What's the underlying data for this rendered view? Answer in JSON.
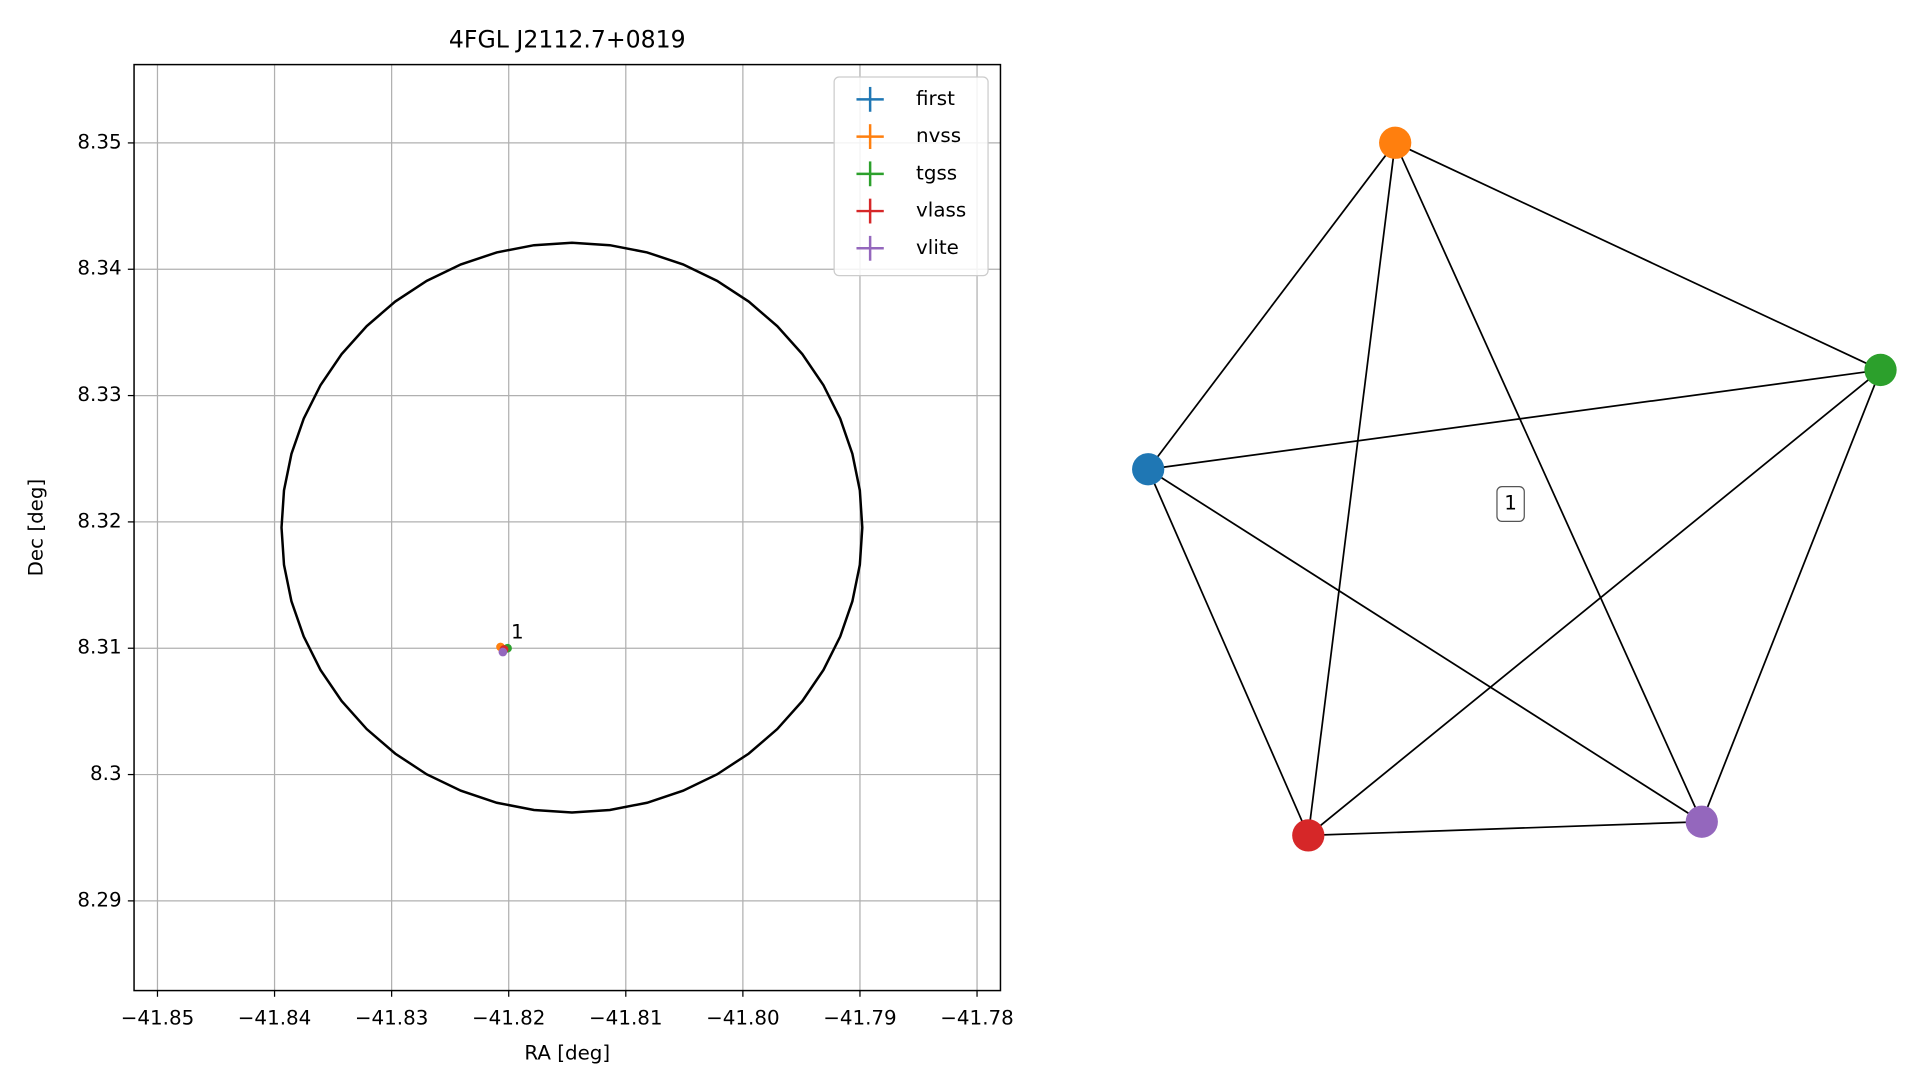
{
  "chart_data": [
    {
      "type": "scatter",
      "title": "4FGL J2112.7+0819",
      "xlabel": "RA [deg]",
      "ylabel": "Dec [deg]",
      "xlim": [
        -41.852,
        -41.778
      ],
      "ylim": [
        8.2829,
        8.3562
      ],
      "xticks": [
        {
          "value": -41.85,
          "label": "−41.85"
        },
        {
          "value": -41.84,
          "label": "−41.84"
        },
        {
          "value": -41.83,
          "label": "−41.83"
        },
        {
          "value": -41.82,
          "label": "−41.82"
        },
        {
          "value": -41.81,
          "label": "−41.81"
        },
        {
          "value": -41.8,
          "label": "−41.80"
        },
        {
          "value": -41.79,
          "label": "−41.79"
        },
        {
          "value": -41.78,
          "label": "−41.78"
        }
      ],
      "yticks": [
        8.29,
        8.3,
        8.31,
        8.32,
        8.33,
        8.34,
        8.35
      ],
      "grid": true,
      "legend": "upper right",
      "series": [
        {
          "name": "first",
          "color": "#1f77b4",
          "x": [
            -41.8204
          ],
          "values": [
            8.3099
          ]
        },
        {
          "name": "nvss",
          "color": "#ff7f0e",
          "x": [
            -41.8207
          ],
          "values": [
            8.3101
          ]
        },
        {
          "name": "tgss",
          "color": "#2ca02c",
          "x": [
            -41.8201
          ],
          "values": [
            8.31
          ]
        },
        {
          "name": "vlass",
          "color": "#d62728",
          "x": [
            -41.8204
          ],
          "values": [
            8.3099
          ]
        },
        {
          "name": "vlite",
          "color": "#9467bd",
          "x": [
            -41.8205
          ],
          "values": [
            8.3097
          ]
        }
      ],
      "region": {
        "x": -41.8146,
        "y": 8.31955,
        "rx": 0.0248,
        "ry": 0.02255,
        "color": "#000000"
      },
      "annotations": [
        {
          "text": "1",
          "x": -41.8198,
          "y": 8.3112
        }
      ]
    },
    {
      "type": "graph",
      "nodes": [
        {
          "color": "#1f77b4"
        },
        {
          "color": "#ff7f0e"
        },
        {
          "color": "#2ca02c"
        },
        {
          "color": "#d62728"
        },
        {
          "color": "#9467bd"
        }
      ],
      "edges": [
        [
          0,
          1
        ],
        [
          0,
          2
        ],
        [
          0,
          3
        ],
        [
          0,
          4
        ],
        [
          1,
          2
        ],
        [
          1,
          3
        ],
        [
          1,
          4
        ],
        [
          2,
          3
        ],
        [
          2,
          4
        ],
        [
          3,
          4
        ]
      ],
      "label": "1"
    }
  ]
}
